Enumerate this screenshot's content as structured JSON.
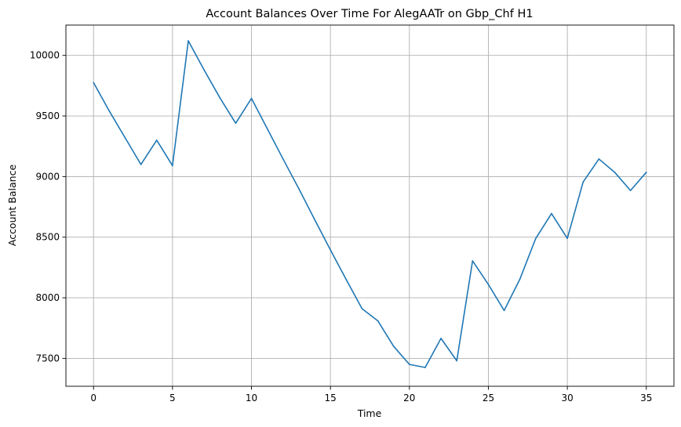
{
  "chart_data": {
    "type": "line",
    "title": "Account Balances Over Time For AlegAATr on Gbp_Chf H1",
    "xlabel": "Time",
    "ylabel": "Account Balance",
    "xlim": [
      -1.75,
      36.75
    ],
    "ylim": [
      7270,
      10250
    ],
    "xticks": [
      0,
      5,
      10,
      15,
      20,
      25,
      30,
      35
    ],
    "yticks": [
      7500,
      8000,
      8500,
      9000,
      9500,
      10000
    ],
    "grid": true,
    "legend": "none",
    "series": [
      {
        "color": "#1f77b4",
        "x": [
          0,
          1,
          2,
          3,
          4,
          5,
          6,
          7,
          8,
          9,
          10,
          11,
          12,
          13,
          14,
          15,
          16,
          17,
          18,
          19,
          20,
          21,
          22,
          23,
          24,
          25,
          26,
          27,
          28,
          29,
          30,
          31,
          32,
          33,
          34,
          35
        ],
        "y": [
          9775,
          9540,
          9320,
          9100,
          9300,
          9090,
          10120,
          9880,
          9650,
          9440,
          9645,
          9395,
          9145,
          8900,
          8645,
          8395,
          8150,
          7910,
          7810,
          7600,
          7450,
          7425,
          7665,
          7480,
          8305,
          8110,
          7895,
          8155,
          8490,
          8695,
          8490,
          8955,
          9145,
          9035,
          8885,
          9035
        ]
      }
    ]
  }
}
